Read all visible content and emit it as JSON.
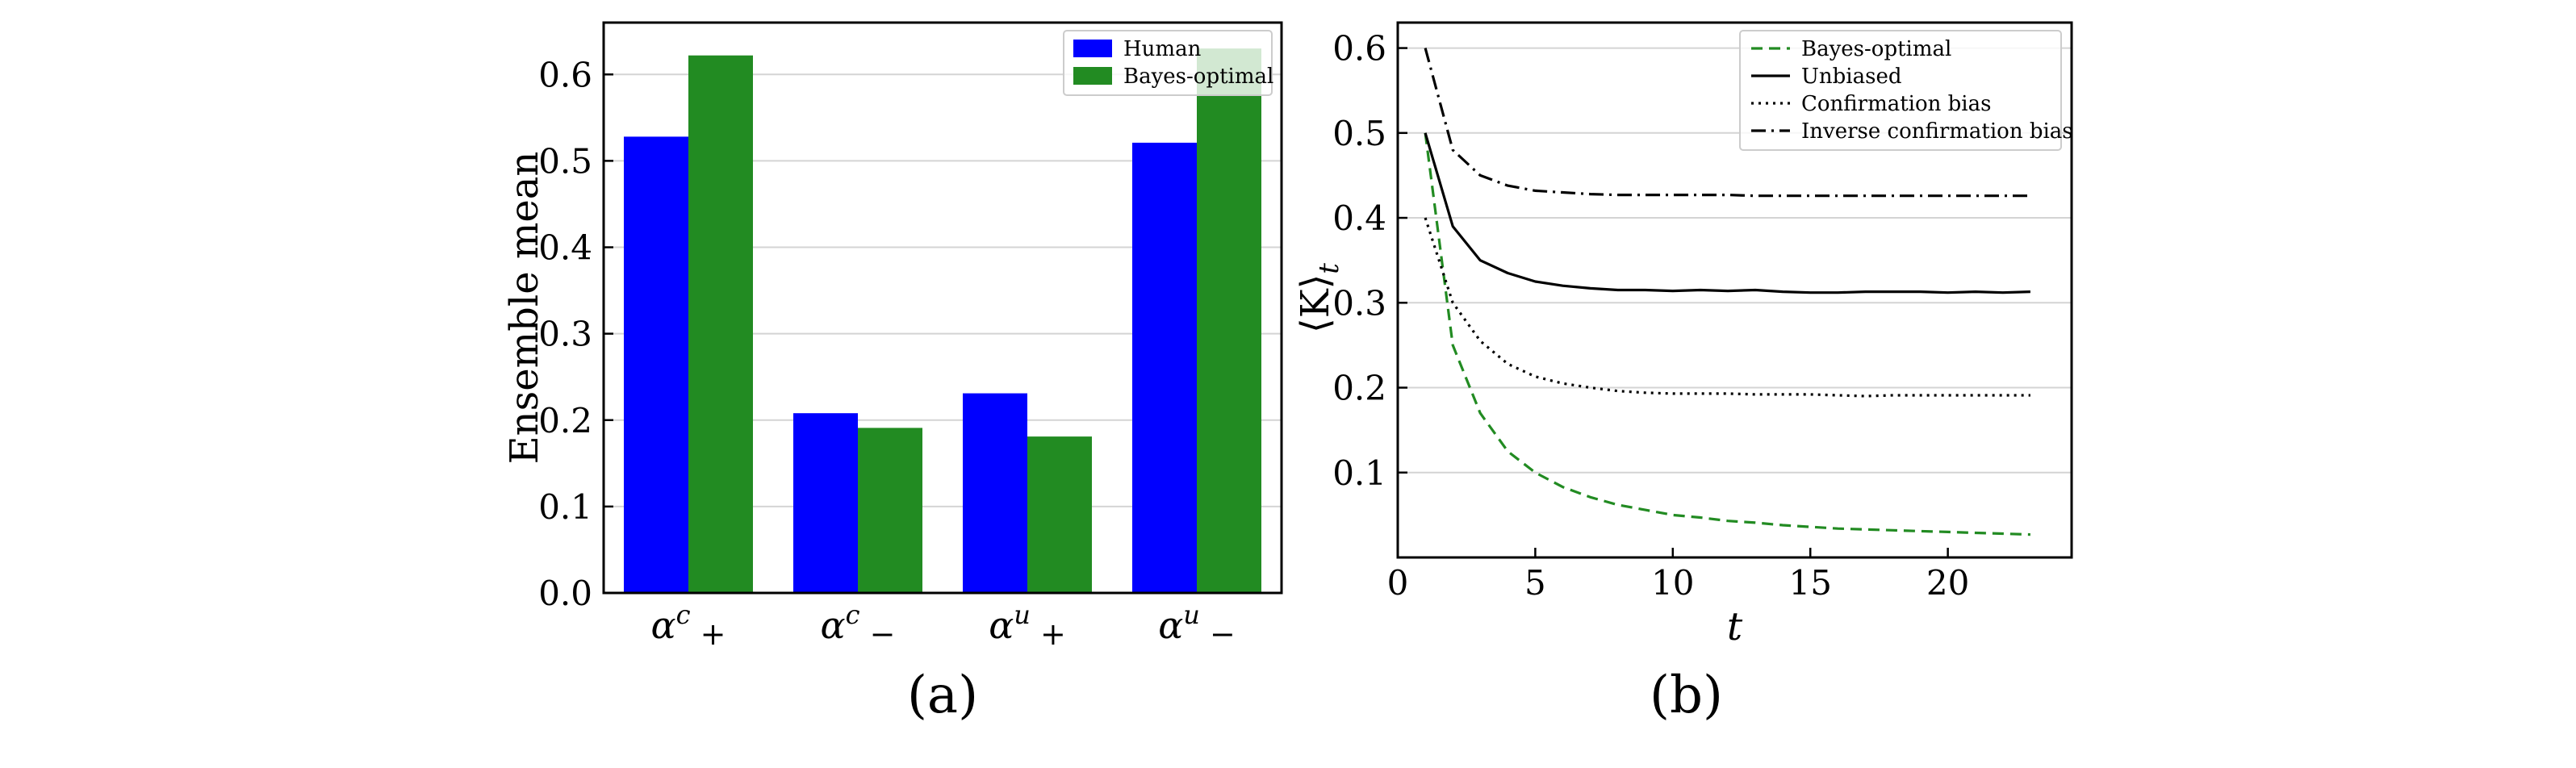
{
  "chart_data": [
    {
      "type": "bar",
      "categories": [
        "α^c_+",
        "α^c_−",
        "α^u_+",
        "α^u_−"
      ],
      "category_labels": [
        {
          "base": "α",
          "sup": "c",
          "sub": "+"
        },
        {
          "base": "α",
          "sup": "c",
          "sub": "−"
        },
        {
          "base": "α",
          "sup": "u",
          "sub": "+"
        },
        {
          "base": "α",
          "sup": "u",
          "sub": "−"
        }
      ],
      "series": [
        {
          "name": "Human",
          "color": "#0000ff",
          "values": [
            0.528,
            0.208,
            0.231,
            0.521
          ]
        },
        {
          "name": "Bayes-optimal",
          "color": "#228b22",
          "values": [
            0.622,
            0.191,
            0.181,
            0.63
          ]
        }
      ],
      "ylabel": "Ensemble mean",
      "ylim": [
        0,
        0.66
      ],
      "yticks": [
        0.0,
        0.1,
        0.2,
        0.3,
        0.4,
        0.5,
        0.6
      ],
      "ytick_labels": [
        "0.0",
        "0.1",
        "0.2",
        "0.3",
        "0.4",
        "0.5",
        "0.6"
      ],
      "grid": "horizontal",
      "legend": "top-right",
      "panel_label": "(a)"
    },
    {
      "type": "line",
      "x": [
        1,
        2,
        3,
        4,
        5,
        6,
        7,
        8,
        9,
        10,
        11,
        12,
        13,
        14,
        15,
        16,
        17,
        18,
        19,
        20,
        21,
        22,
        23
      ],
      "series": [
        {
          "name": "Bayes-optimal",
          "color": "#228b22",
          "style": "dashed",
          "values": [
            0.5,
            0.25,
            0.17,
            0.125,
            0.1,
            0.083,
            0.071,
            0.062,
            0.056,
            0.05,
            0.047,
            0.043,
            0.041,
            0.038,
            0.036,
            0.034,
            0.033,
            0.032,
            0.031,
            0.03,
            0.029,
            0.028,
            0.027
          ]
        },
        {
          "name": "Unbiased",
          "color": "#000000",
          "style": "solid",
          "values": [
            0.5,
            0.39,
            0.35,
            0.335,
            0.325,
            0.32,
            0.317,
            0.315,
            0.315,
            0.314,
            0.315,
            0.314,
            0.315,
            0.313,
            0.312,
            0.312,
            0.313,
            0.313,
            0.313,
            0.312,
            0.313,
            0.312,
            0.313
          ]
        },
        {
          "name": "Confirmation bias",
          "color": "#000000",
          "style": "dotted",
          "values": [
            0.4,
            0.3,
            0.255,
            0.228,
            0.213,
            0.205,
            0.2,
            0.196,
            0.194,
            0.193,
            0.193,
            0.193,
            0.192,
            0.192,
            0.192,
            0.191,
            0.19,
            0.191,
            0.191,
            0.191,
            0.191,
            0.191,
            0.191
          ]
        },
        {
          "name": "Inverse confirmation bias",
          "color": "#000000",
          "style": "dashdot",
          "values": [
            0.6,
            0.48,
            0.45,
            0.438,
            0.432,
            0.43,
            0.428,
            0.427,
            0.427,
            0.427,
            0.427,
            0.427,
            0.426,
            0.426,
            0.426,
            0.426,
            0.426,
            0.426,
            0.426,
            0.426,
            0.426,
            0.426,
            0.426
          ]
        }
      ],
      "xlabel": "t",
      "ylabel": "⟨K⟩_t",
      "ylabel_parts": {
        "base": "⟨K⟩",
        "sub": "t"
      },
      "xlim": [
        0,
        24.5
      ],
      "ylim": [
        0,
        0.63
      ],
      "xticks": [
        0,
        5,
        10,
        15,
        20
      ],
      "xtick_labels": [
        "0",
        "5",
        "10",
        "15",
        "20"
      ],
      "yticks": [
        0.1,
        0.2,
        0.3,
        0.4,
        0.5,
        0.6
      ],
      "ytick_labels": [
        "0.1",
        "0.2",
        "0.3",
        "0.4",
        "0.5",
        "0.6"
      ],
      "grid": "horizontal",
      "legend": "top-right",
      "panel_label": "(b)"
    }
  ]
}
